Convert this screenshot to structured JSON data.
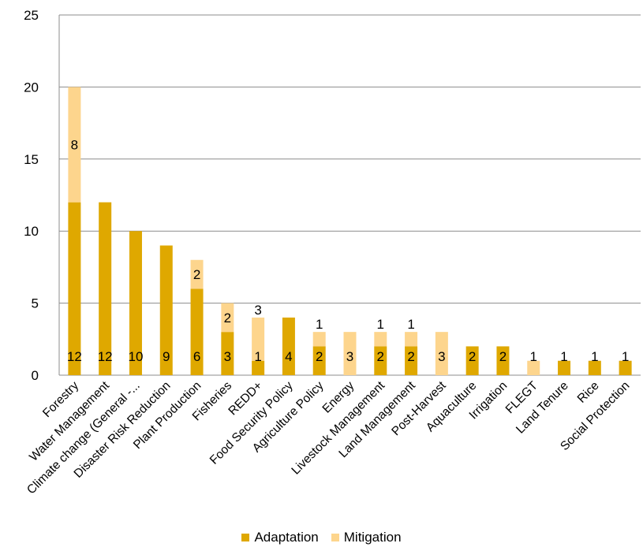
{
  "chart_data": {
    "type": "bar",
    "stacked": true,
    "categories": [
      "Forestry",
      "Water Management",
      "Climate change (General -...",
      "Disaster Risk Reduction",
      "Plant Production",
      "Fisheries",
      "REDD+",
      "Food Security Policy",
      "Agriculture Policy",
      "Energy",
      "Livestock Management",
      "Land Management",
      "Post-Harvest",
      "Aquaculture",
      "Irrigation",
      "FLEGT",
      "Land Tenure",
      "Rice",
      "Social Protection"
    ],
    "series": [
      {
        "name": "Adaptation",
        "color": "#dfa800",
        "values": [
          12,
          12,
          10,
          9,
          6,
          3,
          1,
          4,
          2,
          0,
          2,
          2,
          0,
          2,
          2,
          0,
          1,
          1,
          1
        ]
      },
      {
        "name": "Mitigation",
        "color": "#fdd58d",
        "values": [
          8,
          0,
          0,
          0,
          2,
          2,
          3,
          0,
          1,
          3,
          1,
          1,
          3,
          0,
          0,
          1,
          0,
          0,
          0
        ]
      }
    ],
    "ylim": [
      0,
      25
    ],
    "yticks": [
      0,
      5,
      10,
      15,
      20,
      25
    ],
    "grid": true,
    "legend_position": "bottom"
  },
  "legend": {
    "adaptation_label": "Adaptation",
    "mitigation_label": "Mitigation"
  }
}
